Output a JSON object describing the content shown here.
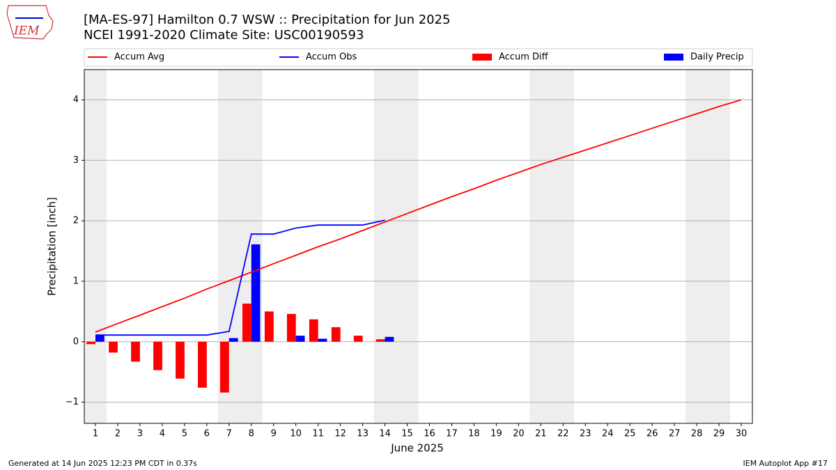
{
  "logo_text": "IEM",
  "footer_left": "Generated at 14 Jun 2025 12:23 PM CDT in 0.37s",
  "footer_right": "IEM Autoplot App #17",
  "chart_data": {
    "type": "line",
    "title": "[MA-ES-97] Hamilton 0.7 WSW :: Precipitation for Jun 2025",
    "subtitle": "NCEI 1991-2020 Climate Site: USC00190593",
    "x_label": "June 2025",
    "y_label": "Precipitation [inch]",
    "x": [
      1,
      2,
      3,
      4,
      5,
      6,
      7,
      8,
      9,
      10,
      11,
      12,
      13,
      14,
      15,
      16,
      17,
      18,
      19,
      20,
      21,
      22,
      23,
      24,
      25,
      26,
      27,
      28,
      29,
      30
    ],
    "xlim": [
      0.5,
      30.5
    ],
    "xticks": [
      1,
      2,
      3,
      4,
      5,
      6,
      7,
      8,
      9,
      10,
      11,
      12,
      13,
      14,
      15,
      16,
      17,
      18,
      19,
      20,
      21,
      22,
      23,
      24,
      25,
      26,
      27,
      28,
      29,
      30
    ],
    "ylim": [
      -1.35,
      4.5
    ],
    "yticks": [
      {
        "value": -1,
        "label": "−1"
      },
      0,
      1,
      2,
      3,
      4
    ],
    "grid": true,
    "shaded_ranges": [
      [
        0.5,
        1.5
      ],
      [
        6.5,
        8.5
      ],
      [
        13.5,
        15.5
      ],
      [
        20.5,
        22.5
      ],
      [
        27.5,
        29.5
      ]
    ],
    "shade_color": "#eeeeee",
    "legend": "top",
    "series": [
      {
        "name": "Accum Avg",
        "type": "line",
        "color": "#ff0000",
        "values": [
          0.16,
          0.3,
          0.44,
          0.58,
          0.72,
          0.87,
          1.01,
          1.15,
          1.29,
          1.43,
          1.57,
          1.7,
          1.84,
          1.98,
          2.12,
          2.26,
          2.4,
          2.53,
          2.67,
          2.8,
          2.93,
          3.05,
          3.17,
          3.29,
          3.41,
          3.53,
          3.65,
          3.77,
          3.89,
          4.0
        ]
      },
      {
        "name": "Accum Obs",
        "type": "line",
        "color": "#0000ff",
        "values": [
          0.11,
          0.11,
          0.11,
          0.11,
          0.11,
          0.11,
          0.17,
          1.78,
          1.78,
          1.88,
          1.93,
          1.93,
          1.93,
          2.01,
          null,
          null,
          null,
          null,
          null,
          null,
          null,
          null,
          null,
          null,
          null,
          null,
          null,
          null,
          null,
          null
        ]
      },
      {
        "name": "Accum Diff",
        "type": "bar",
        "side": "left",
        "color": "#ff0000",
        "values": [
          -0.04,
          -0.18,
          -0.33,
          -0.47,
          -0.61,
          -0.76,
          -0.84,
          0.63,
          0.5,
          0.46,
          0.37,
          0.24,
          0.1,
          0.04,
          null,
          null,
          null,
          null,
          null,
          null,
          null,
          null,
          null,
          null,
          null,
          null,
          null,
          null,
          null,
          null
        ]
      },
      {
        "name": "Daily Precip",
        "type": "bar",
        "side": "right",
        "color": "#0000ff",
        "values": [
          0.11,
          0,
          0,
          0,
          0,
          0,
          0.06,
          1.61,
          0,
          0.1,
          0.05,
          0,
          0,
          0.08,
          null,
          null,
          null,
          null,
          null,
          null,
          null,
          null,
          null,
          null,
          null,
          null,
          null,
          null,
          null,
          null
        ]
      }
    ]
  }
}
